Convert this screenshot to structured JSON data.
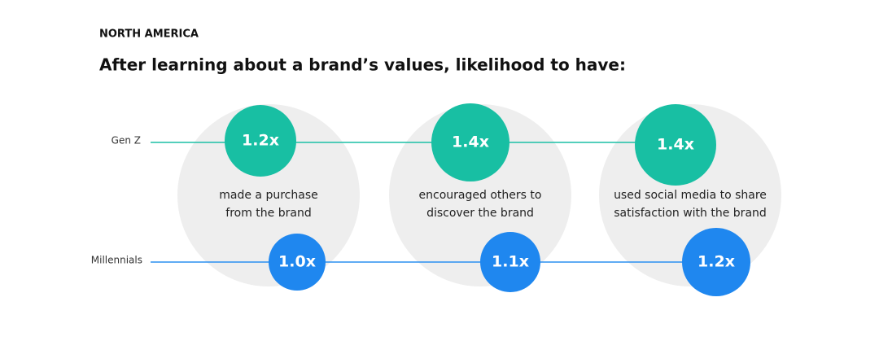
{
  "header": {
    "region": "NORTH AMERICA",
    "title": "After learning about a brand’s values, likelihood to have:"
  },
  "rows": [
    "Gen Z",
    "Millennials"
  ],
  "groups": [
    {
      "label": [
        "made a purchase",
        "from the brand"
      ],
      "gen_z": "1.2x",
      "millennials": "1.0x"
    },
    {
      "label": [
        "encouraged others to",
        "discover the brand"
      ],
      "gen_z": "1.4x",
      "millennials": "1.1x"
    },
    {
      "label": [
        "used social media to share",
        "satisfaction with the brand"
      ],
      "gen_z": "1.4x",
      "millennials": "1.2x"
    }
  ]
}
